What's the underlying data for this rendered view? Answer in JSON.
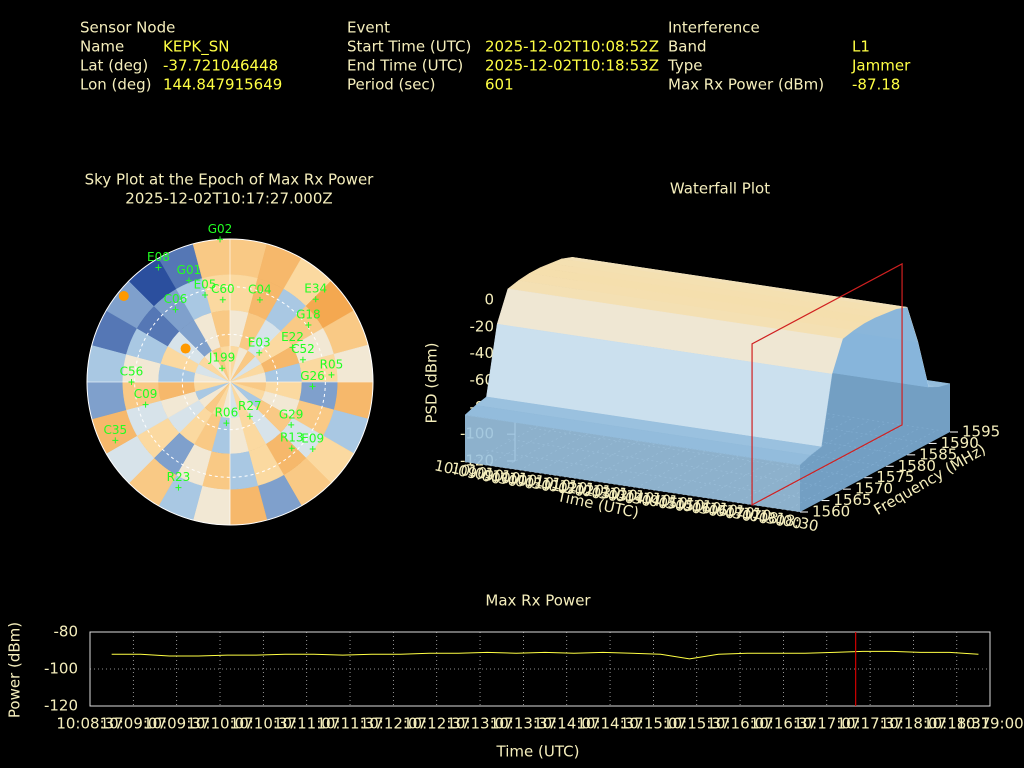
{
  "header": {
    "sections": [
      {
        "title": "Sensor Node",
        "rows": [
          {
            "label": "Name",
            "value": "KEPK_SN"
          },
          {
            "label": "Lat (deg)",
            "value": -37.721046448
          },
          {
            "label": "Lon (deg)",
            "value": 144.847915649
          }
        ]
      },
      {
        "title": "Event",
        "rows": [
          {
            "label": "Start Time (UTC)",
            "value": "2025-12-02T10:08:52Z"
          },
          {
            "label": "End Time (UTC)",
            "value": "2025-12-02T10:18:53Z"
          },
          {
            "label": "Period (sec)",
            "value": 601
          }
        ]
      },
      {
        "title": "Interference",
        "rows": [
          {
            "label": "Band",
            "value": "L1"
          },
          {
            "label": "Type",
            "value": "Jammer"
          },
          {
            "label": "Max Rx Power (dBm)",
            "value": -87.18
          }
        ]
      }
    ]
  },
  "chart_data": [
    {
      "type": "sky",
      "title": "Sky Plot at the Epoch of Max Rx Power",
      "subtitle": "2025-12-02T10:17:27.000Z",
      "clim": [
        0,
        9
      ],
      "cells": [
        [
          7,
          8,
          6,
          9,
          7,
          5,
          8,
          3,
          6,
          7,
          2,
          8,
          5,
          3,
          7,
          4,
          8,
          2,
          3,
          1,
          2,
          0,
          1,
          7
        ],
        [
          6,
          8,
          3,
          7,
          5,
          6,
          2,
          7,
          4,
          8,
          6,
          3,
          7,
          5,
          2,
          6,
          4,
          7,
          5,
          3,
          1,
          2,
          3,
          6
        ],
        [
          5,
          7,
          4,
          6,
          8,
          3,
          6,
          5,
          7,
          4,
          6,
          5,
          3,
          7,
          6,
          4,
          5,
          8,
          3,
          6,
          4,
          2,
          5,
          7
        ],
        [
          6,
          5,
          7,
          4,
          6,
          5,
          7,
          6,
          3,
          5,
          6,
          4,
          5,
          6,
          7,
          5,
          3,
          6,
          5,
          4,
          6,
          5,
          7,
          6
        ]
      ],
      "grid_el": [
        30,
        60
      ],
      "satellite_color": "#22ff22",
      "marker_color": "#ff9900",
      "satellites": [
        {
          "name": "G02",
          "az": 356,
          "el": 0
        },
        {
          "name": "E08",
          "az": 328,
          "el": 5
        },
        {
          "name": "G01",
          "az": 338,
          "el": 21
        },
        {
          "name": "E05",
          "az": 344,
          "el": 33
        },
        {
          "name": "C60",
          "az": 355,
          "el": 38
        },
        {
          "name": "C04",
          "az": 20,
          "el": 35
        },
        {
          "name": "E34",
          "az": 46,
          "el": 15
        },
        {
          "name": "G18",
          "az": 54,
          "el": 29
        },
        {
          "name": "E22",
          "az": 61,
          "el": 45
        },
        {
          "name": "C52",
          "az": 73,
          "el": 42
        },
        {
          "name": "R05",
          "az": 86,
          "el": 26
        },
        {
          "name": "G26",
          "az": 93,
          "el": 38
        },
        {
          "name": "E03",
          "az": 45,
          "el": 64
        },
        {
          "name": "G29",
          "az": 125,
          "el": 43
        },
        {
          "name": "E09",
          "az": 129,
          "el": 23
        },
        {
          "name": "R13",
          "az": 137,
          "el": 33
        },
        {
          "name": "R06",
          "az": 185,
          "el": 64
        },
        {
          "name": "R27",
          "az": 150,
          "el": 65
        },
        {
          "name": "R23",
          "az": 206,
          "el": 16
        },
        {
          "name": "C35",
          "az": 243,
          "el": 9
        },
        {
          "name": "C09",
          "az": 255,
          "el": 35
        },
        {
          "name": "C56",
          "az": 270,
          "el": 28
        },
        {
          "name": "J199",
          "az": 330,
          "el": 80
        },
        {
          "name": "C06",
          "az": 323,
          "el": 33
        }
      ],
      "markers": [
        {
          "az": 309,
          "el": 4
        },
        {
          "az": 307,
          "el": 55
        }
      ]
    },
    {
      "type": "waterfall",
      "title": "Waterfall Plot",
      "zlabel": "PSD (dBm)",
      "xlabel": "Time (UTC)",
      "ylabel": "Frequency (MHz)",
      "zlim": [
        -120,
        0
      ],
      "zticks": [
        0,
        -20,
        -40,
        -60,
        -80,
        -100,
        -120
      ],
      "ylim": [
        1560,
        1595
      ],
      "yticks": [
        1560,
        1565,
        1570,
        1575,
        1580,
        1585,
        1590,
        1595
      ],
      "xlim": [
        "10:08:52",
        "10:18:53"
      ],
      "xticks": [
        "10:09:00",
        "10:09:30",
        "10:10:00",
        "10:10:30",
        "10:11:00",
        "10:11:30",
        "10:12:00",
        "10:12:30",
        "10:13:00",
        "10:13:30",
        "10:14:00",
        "10:14:30",
        "10:15:00",
        "10:15:30",
        "10:16:00",
        "10:16:30",
        "10:17:00",
        "10:17:30",
        "10:18:00",
        "10:18:30"
      ],
      "frequencies": [
        1560,
        1562.5,
        1565,
        1567.5,
        1570,
        1572.5,
        1575,
        1577.5,
        1580,
        1582.5,
        1585,
        1587.5,
        1590,
        1592.5,
        1595
      ],
      "values": [
        -85,
        -82,
        -80,
        -30,
        -8,
        -6,
        -5,
        -5,
        -6,
        -7,
        -10,
        -40,
        -78,
        -82,
        -84
      ],
      "marker": "10:17:27",
      "marker_color": "#d02020"
    },
    {
      "type": "line",
      "title": "Max Rx Power",
      "xlabel": "Time (UTC)",
      "ylabel": "Power (dBm)",
      "xlim": [
        "10:08:37",
        "10:19:00"
      ],
      "xticks": [
        "10:08:37",
        "10:09:07",
        "10:09:37",
        "10:10:07",
        "10:10:37",
        "10:11:07",
        "10:11:37",
        "10:12:07",
        "10:12:37",
        "10:13:07",
        "10:13:37",
        "10:14:07",
        "10:14:37",
        "10:15:07",
        "10:15:37",
        "10:16:07",
        "10:16:37",
        "10:17:07",
        "10:17:37",
        "10:18:07",
        "10:18:37",
        "10:19:00"
      ],
      "ylim": [
        -120,
        -80
      ],
      "yticks": [
        -80,
        -100,
        -120
      ],
      "grid": true,
      "x": [
        "10:08:52",
        "10:09:12",
        "10:09:32",
        "10:09:52",
        "10:10:12",
        "10:10:32",
        "10:10:52",
        "10:11:12",
        "10:11:32",
        "10:11:52",
        "10:12:12",
        "10:12:32",
        "10:12:52",
        "10:13:12",
        "10:13:32",
        "10:13:52",
        "10:14:12",
        "10:14:32",
        "10:14:52",
        "10:15:12",
        "10:15:32",
        "10:15:52",
        "10:16:12",
        "10:16:32",
        "10:16:52",
        "10:17:12",
        "10:17:32",
        "10:17:52",
        "10:18:12",
        "10:18:32",
        "10:18:52"
      ],
      "values": [
        -92,
        -92,
        -93,
        -93,
        -92.5,
        -92.5,
        -92,
        -92,
        -92.5,
        -92,
        -92,
        -91.5,
        -91.5,
        -91,
        -91.5,
        -91,
        -91.5,
        -91,
        -91.5,
        -92,
        -94.5,
        -92,
        -91.5,
        -91.5,
        -91.5,
        -91,
        -90.5,
        -90.5,
        -91,
        -91,
        -92
      ],
      "color": "#ffff44",
      "marker": "10:17:27",
      "marker_color": "#d00000"
    }
  ]
}
